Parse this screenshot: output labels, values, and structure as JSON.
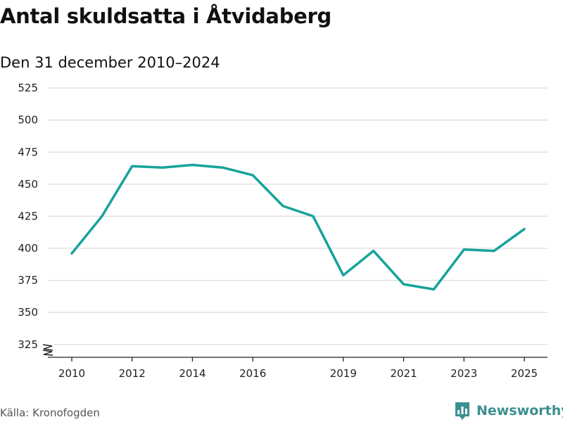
{
  "title": "Antal skuldsatta i Åtvidaberg",
  "subtitle": "Den 31 december 2010–2024",
  "source": "Källa: Kronofogden",
  "brand": {
    "name": "Newsworthy",
    "icon": "bar-chart-icon",
    "color": "#3d8e8e"
  },
  "chart_data": {
    "type": "line",
    "title": "Antal skuldsatta i Åtvidaberg",
    "subtitle": "Den 31 december 2010–2024",
    "xlabel": "",
    "ylabel": "",
    "x": [
      2010,
      2011,
      2012,
      2013,
      2014,
      2015,
      2016,
      2017,
      2018,
      2019,
      2020,
      2021,
      2022,
      2023,
      2024,
      2025
    ],
    "series": [
      {
        "name": "Antal skuldsatta",
        "color": "#16a39a",
        "values": [
          396,
          425,
          464,
          463,
          465,
          463,
          457,
          433,
          425,
          379,
          398,
          372,
          368,
          399,
          398,
          415
        ]
      }
    ],
    "y_ticks": [
      "325",
      "350",
      "375",
      "400",
      "425",
      "450",
      "475",
      "500",
      "525"
    ],
    "x_ticks": [
      "2010",
      "2012",
      "2014",
      "2016",
      "2019",
      "2021",
      "2023",
      "2025"
    ],
    "ylim": [
      315,
      530
    ],
    "xlim": [
      2010,
      2025
    ],
    "axis_break": true,
    "grid": true,
    "colors": {
      "line": "#16a39a",
      "grid": "#dddddd",
      "axis": "#222222"
    }
  }
}
